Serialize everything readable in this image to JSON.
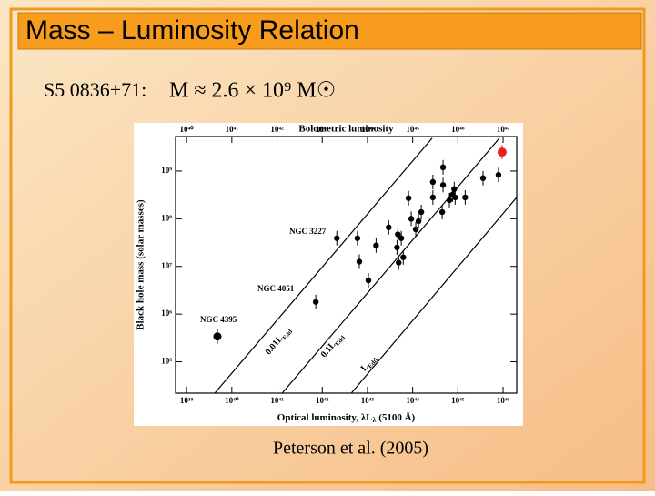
{
  "slide_title": "Mass – Luminosity Relation",
  "object": "S5 0836+71:",
  "formula": "M ≈ 2.6 × 10⁹ M☉",
  "caption": "Peterson et al. (2005)",
  "chart_data": {
    "type": "scatter",
    "title": "Bolometric luminosity",
    "xlabel": [
      "Optical luminosity, λL",
      "λ",
      " (5100 Å)"
    ],
    "ylabel": "Black hole mass (solar masses)",
    "log_x": true,
    "log_y": true,
    "xlim": [
      5.7e+38,
      2e+46
    ],
    "xticks": [
      {
        "value": 1e+39,
        "label": "10³⁹"
      },
      {
        "value": 1e+40,
        "label": "10⁴⁰"
      },
      {
        "value": 1e+41,
        "label": "10⁴¹"
      },
      {
        "value": 1e+42,
        "label": "10⁴²"
      },
      {
        "value": 1e+43,
        "label": "10⁴³"
      },
      {
        "value": 1e+44,
        "label": "10⁴⁴"
      },
      {
        "value": 1e+45,
        "label": "10⁴⁵"
      },
      {
        "value": 1e+46,
        "label": "10⁴⁶"
      }
    ],
    "x2lim": [
      5.7e+39,
      2e+47
    ],
    "x2ticks": [
      {
        "value": 1e+40,
        "label": "10⁴⁰"
      },
      {
        "value": 1e+41,
        "label": "10⁴¹"
      },
      {
        "value": 1e+42,
        "label": "10⁴²"
      },
      {
        "value": 1e+43,
        "label": "10⁴³"
      },
      {
        "value": 1e+44,
        "label": "10⁴⁴"
      },
      {
        "value": 1e+45,
        "label": "10⁴⁵"
      },
      {
        "value": 1e+46,
        "label": "10⁴⁶"
      },
      {
        "value": 1e+47,
        "label": "10⁴⁷"
      }
    ],
    "ylim": [
      22000.0,
      5300000000.0
    ],
    "yticks": [
      {
        "value": 100000.0,
        "label": "10⁵"
      },
      {
        "value": 1000000.0,
        "label": "10⁶"
      },
      {
        "value": 10000000.0,
        "label": "10⁷"
      },
      {
        "value": 100000000.0,
        "label": "10⁸"
      },
      {
        "value": 1000000000.0,
        "label": "10⁹"
      }
    ],
    "series": [
      {
        "color": "#000000",
        "x": [
          4.8e+39,
          7.2e+41,
          1.05e+43,
          6.6e+42,
          2.1e+42,
          6e+42,
          1.55e+43,
          2.95e+43,
          4.7e+43,
          5.6e+43,
          4.5e+43,
          6.2e+43,
          4.9e+43,
          8.1e+43,
          1.17e+44,
          9.3e+43,
          1.55e+44,
          1.35e+44,
          2.8e+44,
          2.8e+44,
          4.5e+44,
          4.7e+44,
          6.5e+44,
          7.6e+44,
          8.3e+44,
          8.7e+44,
          1.45e+45,
          4.7e+44,
          3.6e+45,
          7.9e+45
        ],
        "values": [
          340000.0,
          1800000.0,
          5100000.0,
          12600000.0,
          39000000.0,
          39000000.0,
          27500000.0,
          66000000.0,
          47000000.0,
          39000000.0,
          25000000.0,
          15500000.0,
          12000000.0,
          270000000.0,
          60000000.0,
          100000000.0,
          138000000.0,
          89000000.0,
          590000000.0,
          280000000.0,
          138000000.0,
          1200000000.0,
          245000000.0,
          320000000.0,
          420000000.0,
          280000000.0,
          280000000.0,
          510000000.0,
          710000000.0,
          830000000.0
        ]
      },
      {
        "color": "#e8201e",
        "x": [
          9.5e+45
        ],
        "values": [
          2500000000.0
        ]
      }
    ],
    "lines": [
      {
        "label": "0.01L",
        "subscript": "Edd",
        "x": [
          4.2e+39,
          2.7e+44
        ],
        "values": [
          22000.0,
          4900000000.0
        ]
      },
      {
        "label": "0.1L",
        "subscript": "Edd",
        "x": [
          1.3e+41,
          8.3e+45
        ],
        "values": [
          22000.0,
          4900000000.0
        ]
      },
      {
        "label": "L",
        "subscript": "Edd",
        "x": [
          4.4e+42,
          2e+46
        ],
        "values": [
          22000.0,
          280000000.0
        ]
      }
    ],
    "annotations": [
      "NGC 3227",
      "NGC 4051",
      "NGC 4395"
    ]
  }
}
